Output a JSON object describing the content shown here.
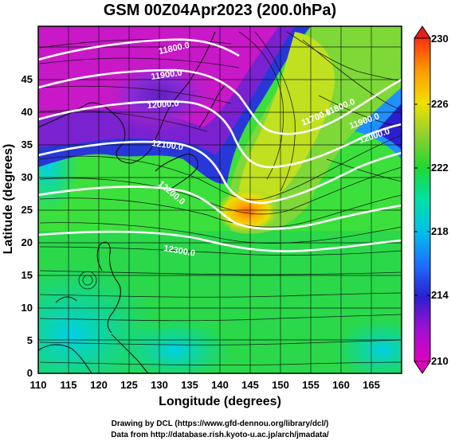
{
  "title": "GSM 00Z04Apr2023 (200.0hPa)",
  "x_axis": {
    "label": "Longitude (degrees)",
    "ticks": [
      "110",
      "115",
      "120",
      "125",
      "130",
      "135",
      "140",
      "145",
      "150",
      "155",
      "160",
      "165"
    ]
  },
  "y_axis": {
    "label": "Latitude  (degrees)",
    "ticks": [
      "0",
      "5",
      "10",
      "15",
      "20",
      "25",
      "30",
      "35",
      "40",
      "45"
    ]
  },
  "colorbar": {
    "ticks": [
      "210",
      "214",
      "218",
      "222",
      "226",
      "230"
    ],
    "colors": [
      "#cc00aa",
      "#e000d0",
      "#8a2be2",
      "#2020d0",
      "#1e90ff",
      "#00c8e0",
      "#00e0a0",
      "#28d828",
      "#9acd32",
      "#f0e000",
      "#ffa500",
      "#ff4500",
      "#e02020"
    ]
  },
  "contour_labels": [
    "11800.0",
    "11900.0",
    "12000.0",
    "12100.0",
    "12200.0",
    "12300.0",
    "11700.0",
    "11800.0",
    "11900.0",
    "12000.0"
  ],
  "credits": {
    "line1": "Drawing by DCL (https://www.gfd-dennou.org/library/dcl/)",
    "line2": "Data from http://database.rish.kyoto-u.ac.jp/arch/jmadata/"
  },
  "chart_data": {
    "type": "heatmap",
    "title": "GSM 00Z04Apr2023 (200.0hPa)",
    "xlabel": "Longitude (degrees)",
    "ylabel": "Latitude  (degrees)",
    "xlim": [
      110,
      170
    ],
    "ylim": [
      0,
      50
    ],
    "color_range": [
      210,
      230
    ],
    "contour_levels": [
      11700,
      11800,
      11900,
      12000,
      12100,
      12200,
      12300
    ],
    "overlay": "streamlines",
    "grid": true
  }
}
